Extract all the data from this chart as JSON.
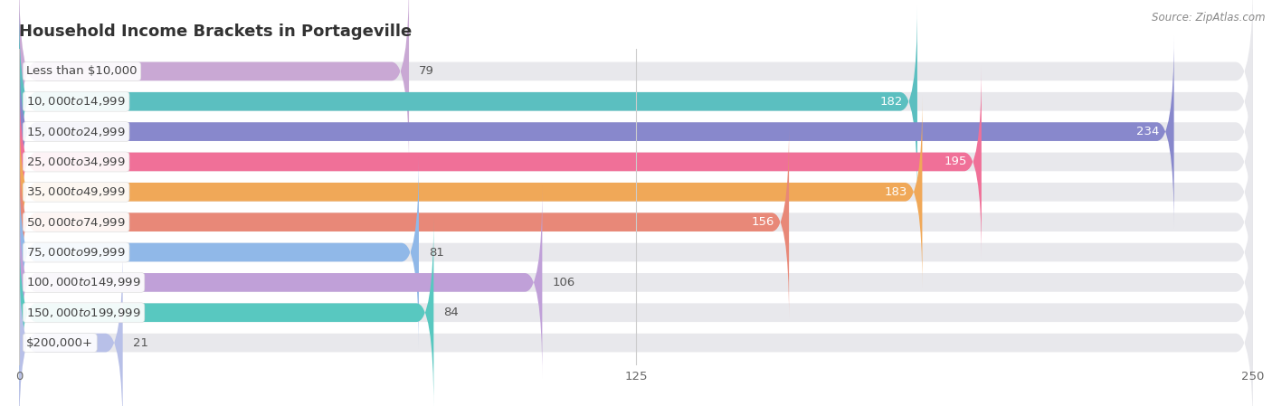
{
  "title": "Household Income Brackets in Portageville",
  "source": "Source: ZipAtlas.com",
  "categories": [
    "Less than $10,000",
    "$10,000 to $14,999",
    "$15,000 to $24,999",
    "$25,000 to $34,999",
    "$35,000 to $49,999",
    "$50,000 to $74,999",
    "$75,000 to $99,999",
    "$100,000 to $149,999",
    "$150,000 to $199,999",
    "$200,000+"
  ],
  "values": [
    79,
    182,
    234,
    195,
    183,
    156,
    81,
    106,
    84,
    21
  ],
  "colors": [
    "#c9a8d4",
    "#5bbfc0",
    "#8888cc",
    "#f07098",
    "#f0a858",
    "#e88878",
    "#90b8e8",
    "#c0a0d8",
    "#58c8c0",
    "#b8c0e8"
  ],
  "xlim": [
    0,
    250
  ],
  "xticks": [
    0,
    125,
    250
  ],
  "background_color": "#ffffff",
  "bar_bg_color": "#e8e8ec",
  "label_bg_color": "#ffffff",
  "title_fontsize": 13,
  "label_fontsize": 9.5,
  "value_fontsize": 9.5,
  "bar_height": 0.62,
  "figsize": [
    14.06,
    4.49
  ],
  "dpi": 100
}
